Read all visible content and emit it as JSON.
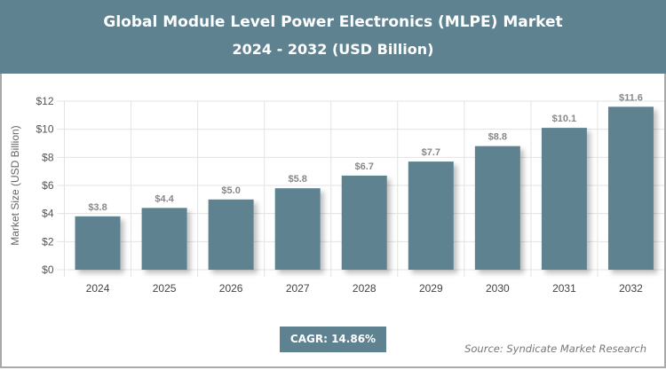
{
  "header": {
    "title": "Global Module Level Power Electronics (MLPE) Market",
    "subtitle": "2024 - 2032 (USD Billion)"
  },
  "chart_data": {
    "type": "bar",
    "title": "Global Module Level Power Electronics (MLPE) Market",
    "subtitle": "2024 - 2032 (USD Billion)",
    "categories": [
      "2024",
      "2025",
      "2026",
      "2027",
      "2028",
      "2029",
      "2030",
      "2031",
      "2032"
    ],
    "values": [
      3.8,
      4.4,
      5.0,
      5.8,
      6.7,
      7.7,
      8.8,
      10.1,
      11.6
    ],
    "data_labels": [
      "$3.8",
      "$4.4",
      "$5.0",
      "$5.8",
      "$6.7",
      "$7.7",
      "$8.8",
      "$10.1",
      "$11.6"
    ],
    "xlabel": "",
    "ylabel": "Market Size (USD Billion)",
    "ylim": [
      0,
      12
    ],
    "yticks": [
      0,
      2,
      4,
      6,
      8,
      10,
      12
    ],
    "ytick_labels": [
      "$0",
      "$2",
      "$4",
      "$6",
      "$8",
      "$10",
      "$12"
    ],
    "grid": true,
    "bar_color": "#5f8291"
  },
  "footer": {
    "cagr": "CAGR: 14.86%",
    "source": "Source: Syndicate Market Research"
  }
}
